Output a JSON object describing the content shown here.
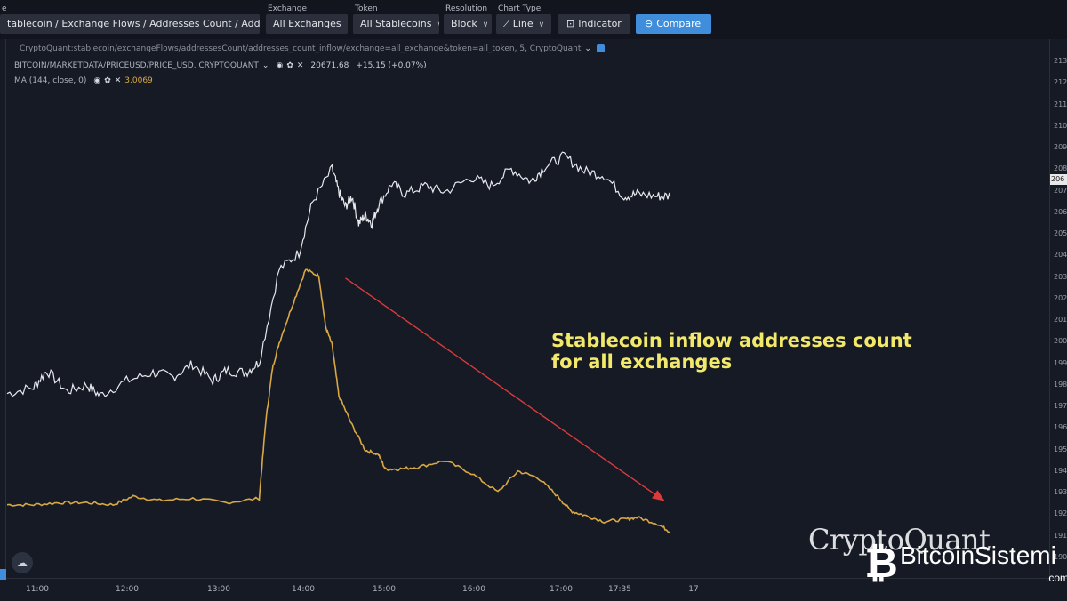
{
  "toolbar": {
    "metric_select": "tablecoin / Exchange Flows / Addresses Count / Addresses ...",
    "exchange": {
      "label": "Exchange",
      "value": "All Exchanges"
    },
    "token": {
      "label": "Token",
      "value": "All Stablecoins"
    },
    "resolution": {
      "label": "Resolution",
      "value": "Block"
    },
    "chart_type": {
      "label": "Chart Type",
      "value": "Line"
    },
    "indicator_label": "Indicator",
    "compare_label": "Compare",
    "corner_label": "e"
  },
  "legend": {
    "source": "CryptoQuant:stablecoin/exchangeFlows/addressesCount/addresses_count_inflow/exchange=all_exchange&token=all_token, 5, CryptoQuant",
    "price_series": "BITCOIN/MARKETDATA/PRICEUSD/PRICE_USD, CRYPTOQUANT",
    "price_value": "20671.68",
    "price_change": "+15.15 (+0.07%)",
    "ma_series": "MA (144, close, 0)",
    "ma_value": "3.0069"
  },
  "colors": {
    "background": "#161a25",
    "price_line": "#e6e8ec",
    "inflow_line": "#d9a843",
    "arrow": "#d93b3b",
    "annotation": "#f2e96b"
  },
  "icons": [
    "chevron-down-icon",
    "indicator-icon",
    "compare-icon",
    "eye-icon",
    "gear-icon",
    "close-icon",
    "cloud-icon"
  ],
  "chart_data": {
    "type": "line",
    "x_ticks": [
      "11:00",
      "12:00",
      "13:00",
      "14:00",
      "15:00",
      "16:00",
      "17:00",
      "17:35",
      "17"
    ],
    "right_ticks": [
      "213",
      "212",
      "211",
      "210",
      "209",
      "208",
      "207",
      "206",
      "205",
      "204",
      "203",
      "202",
      "201",
      "200",
      "199",
      "198",
      "197",
      "196",
      "195",
      "194",
      "193",
      "192",
      "191",
      "190"
    ],
    "price_tag": "206",
    "series": [
      {
        "name": "BITCOIN/MARKETDATA/PRICEUSD/PRICE_USD",
        "x": [
          0,
          0.04,
          0.06,
          0.09,
          0.12,
          0.14,
          0.18,
          0.22,
          0.25,
          0.28,
          0.31,
          0.33,
          0.36,
          0.38,
          0.41,
          0.44,
          0.46,
          0.49,
          0.5,
          0.51,
          0.52,
          0.53,
          0.54,
          0.55,
          0.56,
          0.58,
          0.6,
          0.63,
          0.66,
          0.7,
          0.73,
          0.76,
          0.79,
          0.81,
          0.84,
          0.87,
          0.9,
          0.93,
          0.95,
          0.98,
          1.0
        ],
        "y": [
          197.3,
          197.6,
          198.4,
          197.4,
          197.7,
          197.2,
          197.9,
          198.3,
          198.1,
          198.7,
          197.9,
          198.4,
          198.3,
          198.8,
          203.2,
          204.0,
          206.4,
          208.0,
          206.9,
          206.2,
          206.7,
          205.4,
          205.8,
          205.4,
          206.3,
          207.3,
          206.8,
          207.2,
          206.9,
          207.6,
          207.2,
          208.0,
          207.4,
          208.1,
          208.6,
          207.9,
          207.7,
          206.7,
          206.8,
          206.7,
          206.7
        ]
      },
      {
        "name": "Stablecoin inflow addresses count",
        "x": [
          0,
          0.04,
          0.08,
          0.12,
          0.16,
          0.19,
          0.23,
          0.28,
          0.33,
          0.38,
          0.39,
          0.4,
          0.41,
          0.43,
          0.45,
          0.47,
          0.48,
          0.49,
          0.5,
          0.52,
          0.54,
          0.56,
          0.57,
          0.59,
          0.62,
          0.66,
          0.7,
          0.74,
          0.77,
          0.8,
          0.83,
          0.85,
          0.87,
          0.9,
          0.93,
          0.95,
          0.98,
          1.0
        ],
        "y": [
          192.0,
          192.0,
          192.1,
          192.1,
          192.0,
          192.4,
          192.2,
          192.3,
          192.1,
          192.3,
          196.0,
          198.5,
          199.7,
          201.5,
          203.2,
          202.9,
          200.5,
          199.6,
          197.2,
          195.8,
          194.6,
          194.4,
          193.7,
          193.7,
          193.8,
          194.1,
          193.5,
          192.6,
          193.6,
          193.3,
          192.4,
          191.7,
          191.5,
          191.2,
          191.3,
          191.4,
          191.1,
          190.7
        ]
      }
    ],
    "annotation": {
      "text_line1": "Stablecoin inflow addresses count",
      "text_line2": "for all exchanges"
    },
    "arrow": {
      "from_x": 0.51,
      "from_y": 202.8,
      "to_x": 0.99,
      "to_y": 192.2
    }
  },
  "watermark": {
    "brand": "CryptoQuant",
    "site_name": "BitcoinSistemi",
    "site_tld": ".com"
  }
}
